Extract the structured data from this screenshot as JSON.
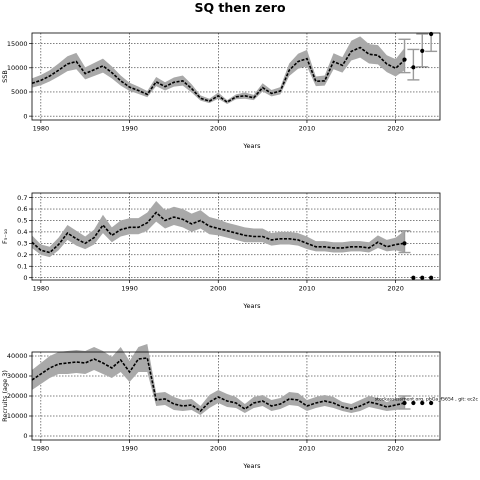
{
  "title": "SQ then zero",
  "note": "stockassessment.org, pbGa_f5654 , git: ec2c",
  "chart_data": [
    {
      "type": "line",
      "ylabel": "SSB",
      "xlabel": "Years",
      "xlim": [
        1979,
        2025
      ],
      "ylim": [
        -800,
        17200
      ],
      "xticks": [
        1980,
        1990,
        2000,
        2010,
        2020
      ],
      "yticks": [
        0,
        5000,
        10000,
        15000
      ],
      "grid": true,
      "x": [
        1979,
        1980,
        1981,
        1982,
        1983,
        1984,
        1985,
        1986,
        1987,
        1988,
        1989,
        1990,
        1991,
        1992,
        1993,
        1994,
        1995,
        1996,
        1997,
        1998,
        1999,
        2000,
        2001,
        2002,
        2003,
        2004,
        2005,
        2006,
        2007,
        2008,
        2009,
        2010,
        2011,
        2012,
        2013,
        2014,
        2015,
        2016,
        2017,
        2018,
        2019,
        2020,
        2021
      ],
      "estimate": [
        6800,
        7400,
        8300,
        9500,
        10800,
        11300,
        8800,
        9600,
        10400,
        9000,
        7300,
        6000,
        5300,
        4500,
        7100,
        6100,
        7000,
        7300,
        5700,
        3700,
        3100,
        4200,
        2900,
        4000,
        4200,
        3800,
        5900,
        4700,
        5200,
        9500,
        11300,
        11900,
        7200,
        7300,
        11300,
        10500,
        13400,
        14200,
        12800,
        12600,
        10800,
        9900,
        11600
      ],
      "lower": [
        5900,
        6400,
        7200,
        8200,
        9300,
        9700,
        7600,
        8300,
        9000,
        7800,
        6300,
        5200,
        4600,
        3900,
        6200,
        5300,
        6100,
        6300,
        4900,
        3200,
        2700,
        3600,
        2500,
        3500,
        3600,
        3300,
        5100,
        4100,
        4500,
        8300,
        9800,
        10300,
        6200,
        6300,
        9700,
        9000,
        11500,
        12100,
        10900,
        10700,
        9100,
        8200,
        9500
      ],
      "upper": [
        7800,
        8500,
        9500,
        10900,
        12400,
        13100,
        10100,
        11000,
        11900,
        10300,
        8400,
        6900,
        6100,
        5200,
        8100,
        7000,
        8000,
        8400,
        6600,
        4300,
        3600,
        4900,
        3300,
        4500,
        4900,
        4400,
        6800,
        5400,
        6000,
        10900,
        12900,
        13700,
        8200,
        8400,
        13000,
        12200,
        15600,
        16500,
        14900,
        14700,
        12600,
        11800,
        14100
      ],
      "forecast": [
        {
          "x": 2021,
          "value": 11700,
          "lower": 9000,
          "upper": 15900
        },
        {
          "x": 2022,
          "value": 10100,
          "lower": 7500,
          "upper": 13800
        },
        {
          "x": 2023,
          "value": 13500,
          "lower": 10200,
          "upper": 17000
        },
        {
          "x": 2024,
          "value": 17000,
          "lower": 13400,
          "upper": 17200
        }
      ]
    },
    {
      "type": "line",
      "ylabel": "F₅₋₁₀",
      "xlabel": "Years",
      "xlim": [
        1979,
        2025
      ],
      "ylim": [
        -0.02,
        0.74
      ],
      "xticks": [
        1980,
        1990,
        2000,
        2010,
        2020
      ],
      "yticks": [
        0,
        0.1,
        0.2,
        0.3,
        0.4,
        0.5,
        0.6,
        0.7
      ],
      "grid": true,
      "x": [
        1979,
        1980,
        1981,
        1982,
        1983,
        1984,
        1985,
        1986,
        1987,
        1988,
        1989,
        1990,
        1991,
        1992,
        1993,
        1994,
        1995,
        1996,
        1997,
        1998,
        1999,
        2000,
        2001,
        2002,
        2003,
        2004,
        2005,
        2006,
        2007,
        2008,
        2009,
        2010,
        2011,
        2012,
        2013,
        2014,
        2015,
        2016,
        2017,
        2018,
        2019,
        2020,
        2021
      ],
      "estimate": [
        0.31,
        0.24,
        0.22,
        0.29,
        0.39,
        0.34,
        0.3,
        0.35,
        0.46,
        0.37,
        0.42,
        0.44,
        0.44,
        0.48,
        0.57,
        0.5,
        0.53,
        0.51,
        0.47,
        0.5,
        0.45,
        0.43,
        0.41,
        0.39,
        0.37,
        0.36,
        0.36,
        0.33,
        0.34,
        0.34,
        0.33,
        0.3,
        0.27,
        0.27,
        0.26,
        0.26,
        0.27,
        0.27,
        0.26,
        0.31,
        0.27,
        0.29,
        0.3
      ],
      "lower": [
        0.26,
        0.2,
        0.18,
        0.24,
        0.33,
        0.28,
        0.25,
        0.29,
        0.39,
        0.31,
        0.36,
        0.38,
        0.38,
        0.41,
        0.49,
        0.43,
        0.46,
        0.44,
        0.4,
        0.43,
        0.38,
        0.37,
        0.35,
        0.33,
        0.31,
        0.31,
        0.31,
        0.28,
        0.29,
        0.29,
        0.28,
        0.25,
        0.23,
        0.23,
        0.22,
        0.22,
        0.23,
        0.23,
        0.22,
        0.26,
        0.23,
        0.24,
        0.22
      ],
      "upper": [
        0.37,
        0.29,
        0.27,
        0.35,
        0.46,
        0.41,
        0.36,
        0.42,
        0.55,
        0.44,
        0.5,
        0.52,
        0.52,
        0.57,
        0.67,
        0.59,
        0.62,
        0.6,
        0.56,
        0.59,
        0.53,
        0.51,
        0.48,
        0.46,
        0.44,
        0.43,
        0.43,
        0.39,
        0.4,
        0.4,
        0.39,
        0.36,
        0.32,
        0.32,
        0.31,
        0.31,
        0.32,
        0.32,
        0.31,
        0.37,
        0.33,
        0.35,
        0.41
      ],
      "forecast": [
        {
          "x": 2021,
          "value": 0.3,
          "lower": 0.22,
          "upper": 0.41
        },
        {
          "x": 2022,
          "value": 0.0,
          "lower": 0.0,
          "upper": 0.0
        },
        {
          "x": 2023,
          "value": 0.0,
          "lower": 0.0,
          "upper": 0.0
        },
        {
          "x": 2024,
          "value": 0.0,
          "lower": 0.0,
          "upper": 0.0
        }
      ]
    },
    {
      "type": "line",
      "ylabel": "Recruits (age 3)",
      "xlabel": "Years",
      "xlim": [
        1979,
        2025
      ],
      "ylim": [
        -2000,
        42000
      ],
      "xticks": [
        1980,
        1990,
        2000,
        2010,
        2020
      ],
      "yticks": [
        0,
        10000,
        20000,
        30000,
        40000
      ],
      "grid": true,
      "x": [
        1979,
        1980,
        1981,
        1982,
        1983,
        1984,
        1985,
        1986,
        1987,
        1988,
        1989,
        1990,
        1991,
        1992,
        1993,
        1994,
        1995,
        1996,
        1997,
        1998,
        1999,
        2000,
        2001,
        2002,
        2003,
        2004,
        2005,
        2006,
        2007,
        2008,
        2009,
        2010,
        2011,
        2012,
        2013,
        2014,
        2015,
        2016,
        2017,
        2018,
        2019,
        2020,
        2021
      ],
      "estimate": [
        28000,
        31000,
        34000,
        36000,
        36500,
        37000,
        36500,
        38500,
        36500,
        34000,
        38000,
        32000,
        38500,
        39000,
        18000,
        18500,
        16000,
        15000,
        15500,
        12500,
        17000,
        19500,
        17500,
        16500,
        13500,
        16500,
        17500,
        15000,
        16000,
        18500,
        18000,
        15000,
        16500,
        17500,
        16500,
        14500,
        13500,
        15000,
        17000,
        16000,
        14500,
        15500,
        16500
      ],
      "lower": [
        23000,
        26000,
        29000,
        31000,
        31000,
        31500,
        31000,
        33000,
        31000,
        29000,
        32000,
        27000,
        32000,
        32000,
        15000,
        15500,
        13000,
        12500,
        13000,
        10500,
        14000,
        16500,
        14500,
        14000,
        11500,
        14000,
        15000,
        12500,
        13500,
        15500,
        15000,
        12500,
        14000,
        15000,
        14000,
        12500,
        11500,
        12500,
        14500,
        13500,
        12500,
        13000,
        13500
      ],
      "upper": [
        33000,
        36500,
        40000,
        42000,
        42500,
        43000,
        42500,
        44500,
        42500,
        39500,
        44500,
        37500,
        44500,
        46000,
        21500,
        22000,
        19500,
        18000,
        18500,
        15000,
        20500,
        23000,
        21000,
        19500,
        16000,
        19500,
        20500,
        18000,
        19000,
        22000,
        21500,
        18000,
        19500,
        20500,
        19500,
        17000,
        16000,
        18000,
        20000,
        19000,
        17000,
        18500,
        20000
      ],
      "forecast": [
        {
          "x": 2021,
          "value": 16500,
          "lower": 13500,
          "upper": 20000
        },
        {
          "x": 2022,
          "value": 16500,
          "lower": 16500,
          "upper": 16500
        },
        {
          "x": 2023,
          "value": 16500,
          "lower": 16500,
          "upper": 16500
        },
        {
          "x": 2024,
          "value": 16500,
          "lower": 16500,
          "upper": 16500
        }
      ]
    }
  ]
}
